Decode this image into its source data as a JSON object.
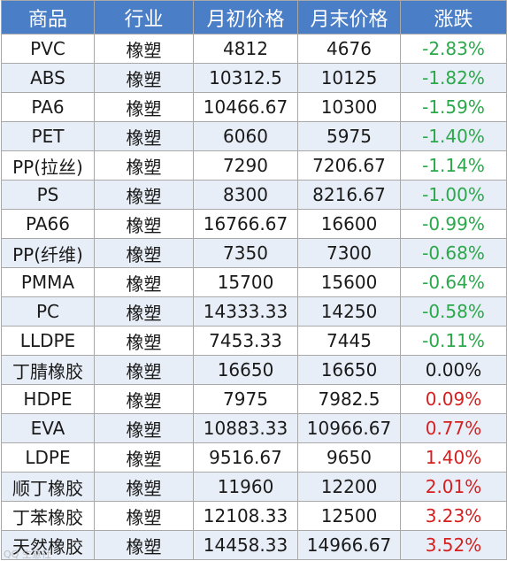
{
  "headers": {
    "product": "商品",
    "industry": "行业",
    "start_price": "月初价格",
    "end_price": "月末价格",
    "change": "涨跌"
  },
  "rows": [
    {
      "product": "PVC",
      "industry": "橡塑",
      "start": "4812",
      "end": "4676",
      "change": "-2.83%"
    },
    {
      "product": "ABS",
      "industry": "橡塑",
      "start": "10312.5",
      "end": "10125",
      "change": "-1.82%"
    },
    {
      "product": "PA6",
      "industry": "橡塑",
      "start": "10466.67",
      "end": "10300",
      "change": "-1.59%"
    },
    {
      "product": "PET",
      "industry": "橡塑",
      "start": "6060",
      "end": "5975",
      "change": "-1.40%"
    },
    {
      "product": "PP(拉丝)",
      "industry": "橡塑",
      "start": "7290",
      "end": "7206.67",
      "change": "-1.14%"
    },
    {
      "product": "PS",
      "industry": "橡塑",
      "start": "8300",
      "end": "8216.67",
      "change": "-1.00%"
    },
    {
      "product": "PA66",
      "industry": "橡塑",
      "start": "16766.67",
      "end": "16600",
      "change": "-0.99%"
    },
    {
      "product": "PP(纤维)",
      "industry": "橡塑",
      "start": "7350",
      "end": "7300",
      "change": "-0.68%"
    },
    {
      "product": "PMMA",
      "industry": "橡塑",
      "start": "15700",
      "end": "15600",
      "change": "-0.64%"
    },
    {
      "product": "PC",
      "industry": "橡塑",
      "start": "14333.33",
      "end": "14250",
      "change": "-0.58%"
    },
    {
      "product": "LLDPE",
      "industry": "橡塑",
      "start": "7453.33",
      "end": "7445",
      "change": "-0.11%"
    },
    {
      "product": "丁腈橡胶",
      "industry": "橡塑",
      "start": "16650",
      "end": "16650",
      "change": "0.00%"
    },
    {
      "product": "HDPE",
      "industry": "橡塑",
      "start": "7975",
      "end": "7982.5",
      "change": "0.09%"
    },
    {
      "product": "EVA",
      "industry": "橡塑",
      "start": "10883.33",
      "end": "10966.67",
      "change": "0.77%"
    },
    {
      "product": "LDPE",
      "industry": "橡塑",
      "start": "9516.67",
      "end": "9650",
      "change": "1.40%"
    },
    {
      "product": "顺丁橡胶",
      "industry": "橡塑",
      "start": "11960",
      "end": "12200",
      "change": "2.01%"
    },
    {
      "product": "丁苯橡胶",
      "industry": "橡塑",
      "start": "12108.33",
      "end": "12500",
      "change": "3.23%"
    },
    {
      "product": "天然橡胶",
      "industry": "橡塑",
      "start": "14458.33",
      "end": "14966.67",
      "change": "3.52%"
    }
  ],
  "colors": {
    "header_bg": "#4a7ec7",
    "negative": "#2aa84a",
    "positive": "#d42020",
    "neutral": "#1a1a1a"
  },
  "watermark": "QQ 生意社"
}
